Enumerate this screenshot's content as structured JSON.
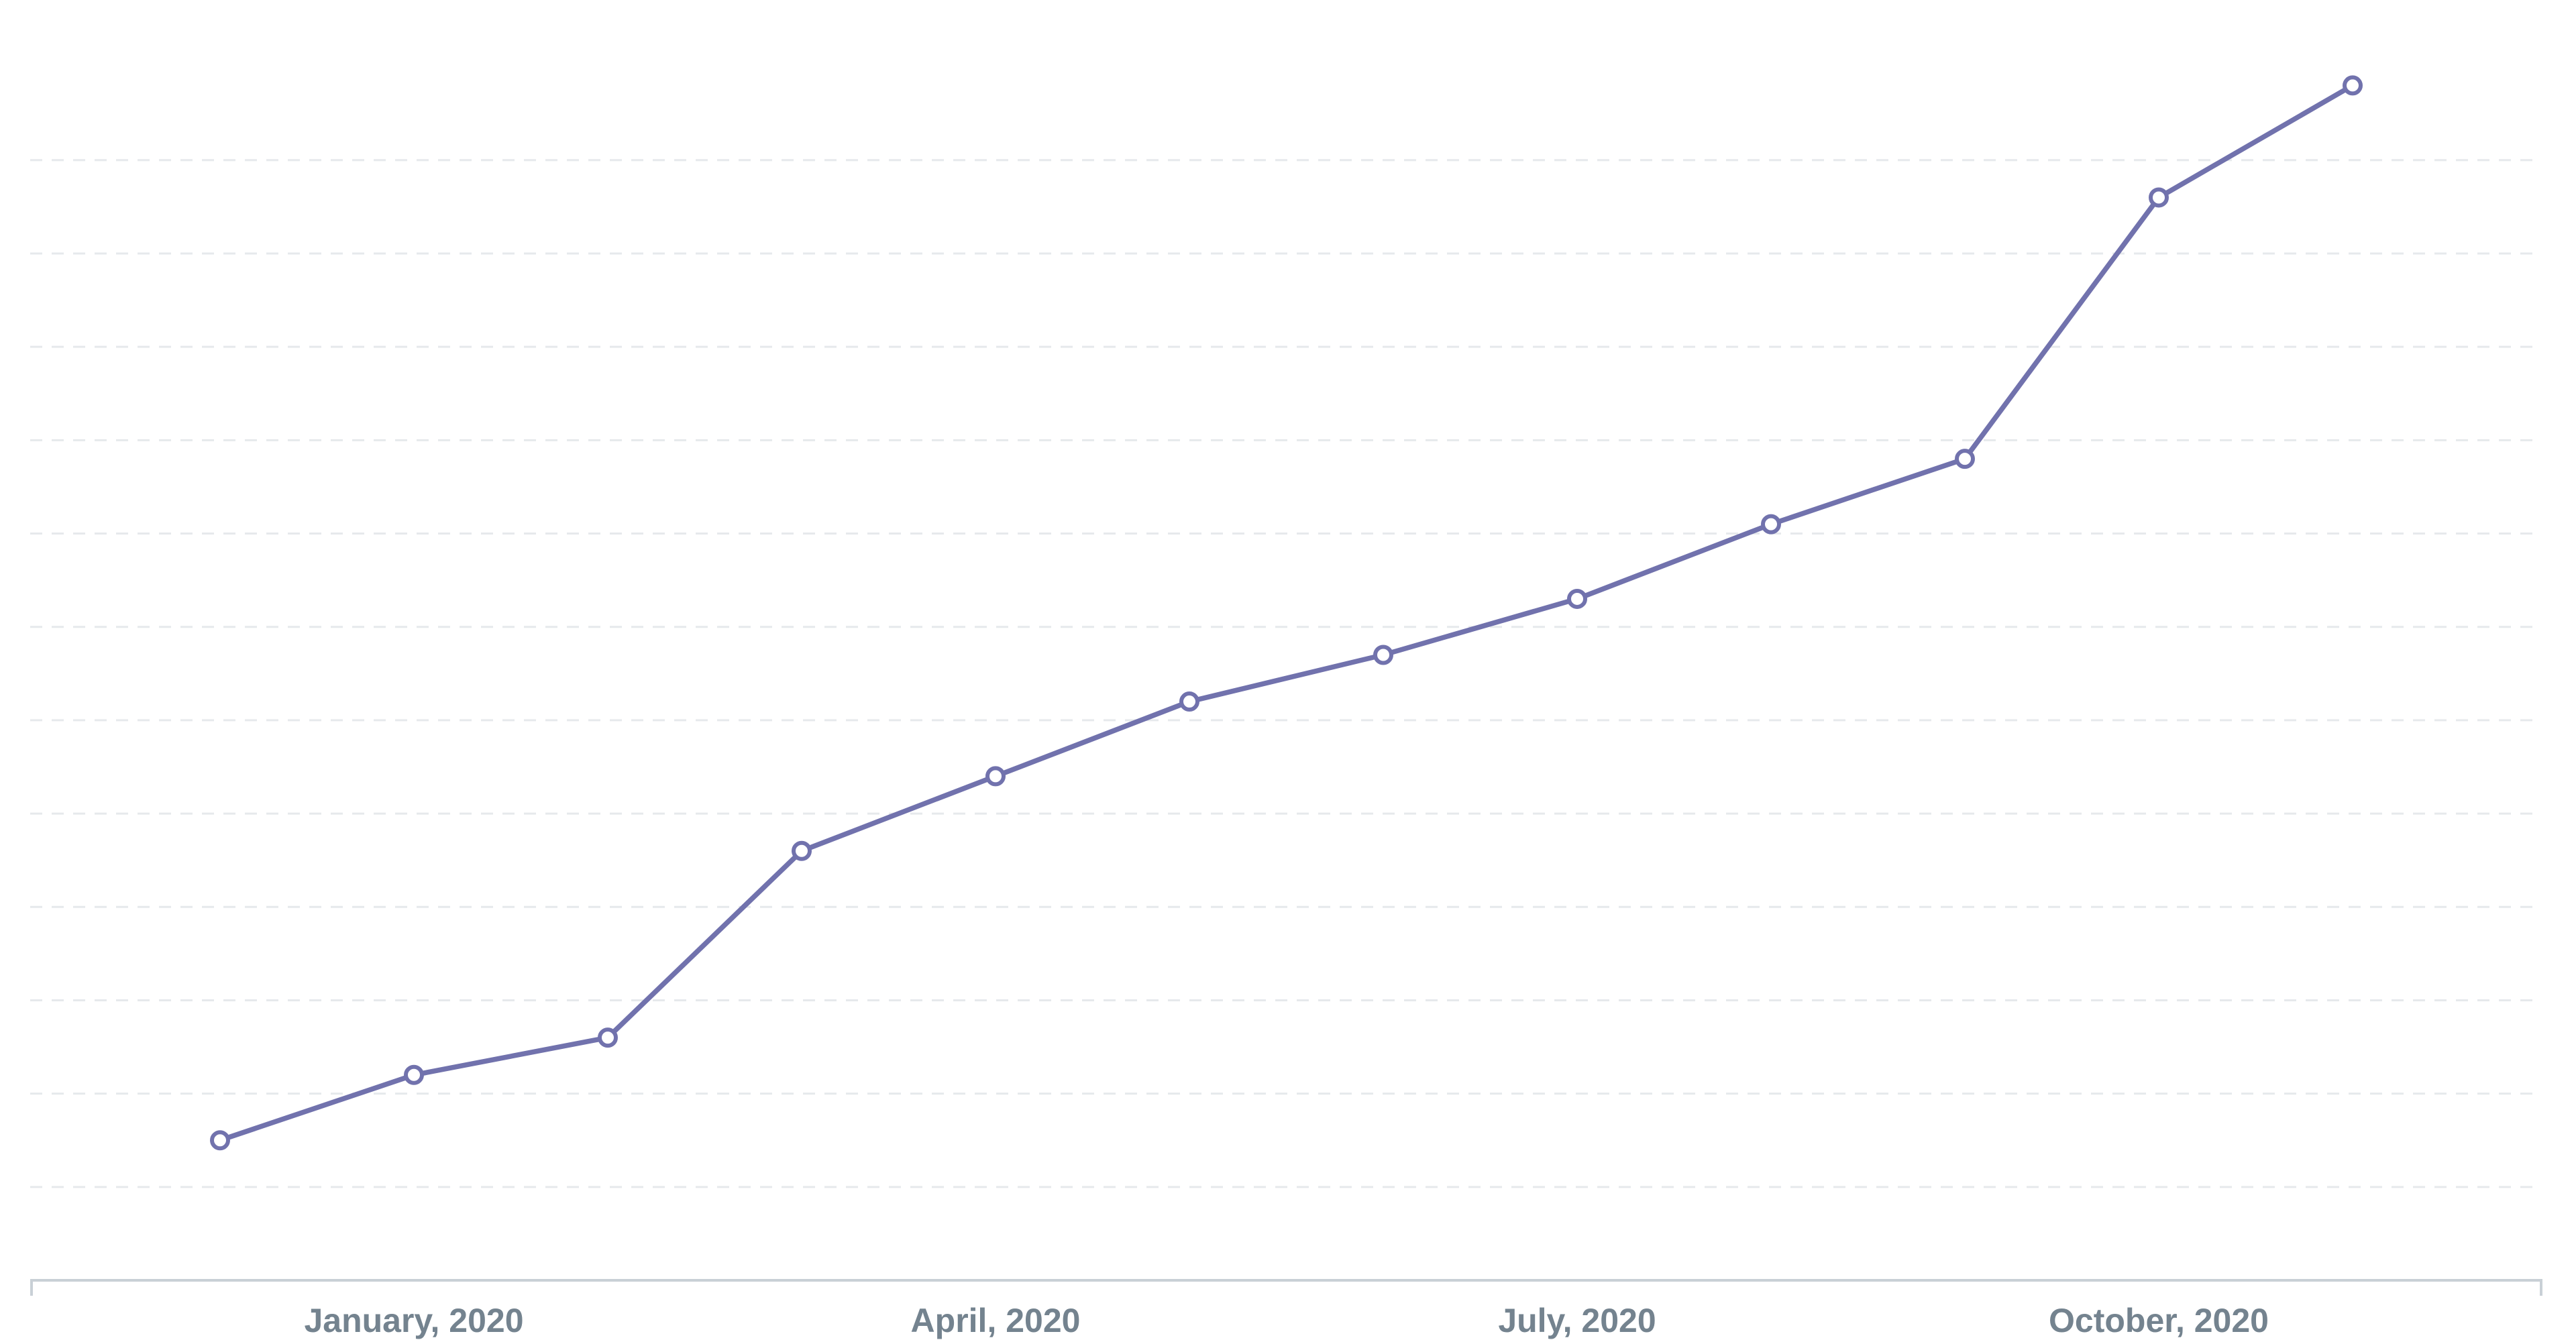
{
  "chart_data": {
    "type": "line",
    "categories": [
      null,
      "January, 2020",
      null,
      null,
      "April, 2020",
      null,
      null,
      "July, 2020",
      null,
      null,
      "October, 2020",
      null
    ],
    "values": [
      1.5,
      2.2,
      2.6,
      4.6,
      5.4,
      6.2,
      6.7,
      7.3,
      8.1,
      8.8,
      11.6,
      12.8
    ],
    "color": "#7172ad",
    "ylim": [
      0,
      13.5
    ],
    "yticks": [
      1,
      2,
      3,
      4,
      5,
      6,
      7,
      8,
      9,
      10,
      11,
      12
    ],
    "grid": true
  }
}
